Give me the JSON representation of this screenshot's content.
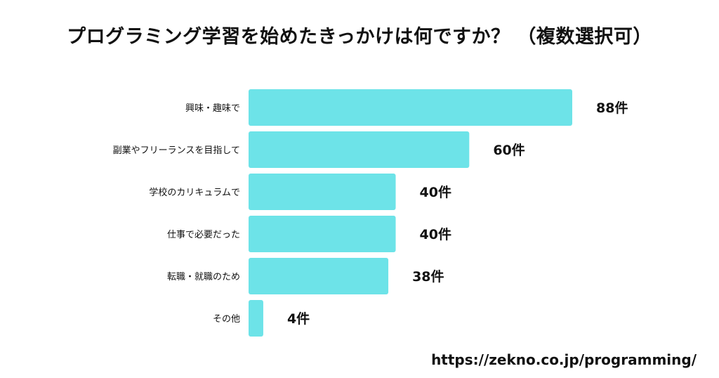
{
  "title": "プログラミング学習を始めたきっかけは何ですか？ （複数選択可）",
  "footer_url": "https://zekno.co.jp/programming/",
  "colors": {
    "bar": "#6de3e8",
    "text": "#111111"
  },
  "chart_data": {
    "type": "bar",
    "orientation": "horizontal",
    "title": "プログラミング学習を始めたきっかけは何ですか？ （複数選択可）",
    "xlabel": "",
    "ylabel": "",
    "categories": [
      "興味・趣味で",
      "副業やフリーランスを目指して",
      "学校のカリキュラムで",
      "仕事で必要だった",
      "転職・就職のため",
      "その他"
    ],
    "values": [
      88,
      60,
      40,
      40,
      38,
      4
    ],
    "value_labels": [
      "88件",
      "60件",
      "40件",
      "40件",
      "38件",
      "4件"
    ],
    "xlim": [
      0,
      88
    ],
    "grid": false,
    "legend": "none"
  }
}
